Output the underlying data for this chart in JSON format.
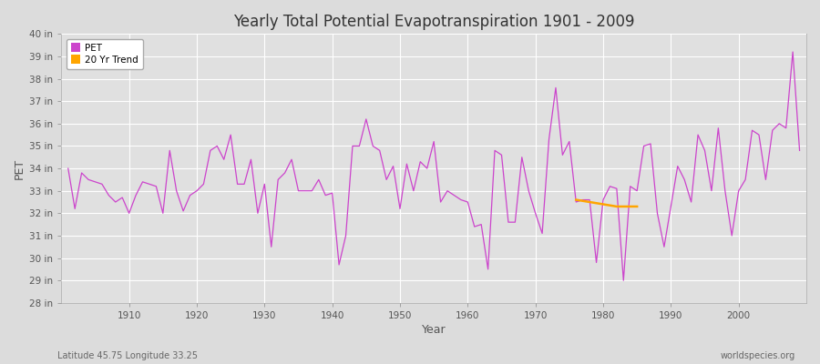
{
  "title": "Yearly Total Potential Evapotranspiration 1901 - 2009",
  "xlabel": "Year",
  "ylabel": "PET",
  "subtitle_left": "Latitude 45.75 Longitude 33.25",
  "subtitle_right": "worldspecies.org",
  "pet_color": "#CC44CC",
  "trend_color": "#FFA500",
  "fig_bg_color": "#DCDCDC",
  "plot_bg_color": "#E0E0E0",
  "ylim": [
    28,
    40
  ],
  "yticks": [
    28,
    29,
    30,
    31,
    32,
    33,
    34,
    35,
    36,
    37,
    38,
    39,
    40
  ],
  "xlim": [
    1900,
    2010
  ],
  "xtick_positions": [
    1910,
    1920,
    1930,
    1940,
    1950,
    1960,
    1970,
    1980,
    1990,
    2000
  ],
  "years": [
    1901,
    1902,
    1903,
    1904,
    1905,
    1906,
    1907,
    1908,
    1909,
    1910,
    1911,
    1912,
    1913,
    1914,
    1915,
    1916,
    1917,
    1918,
    1919,
    1920,
    1921,
    1922,
    1923,
    1924,
    1925,
    1926,
    1927,
    1928,
    1929,
    1930,
    1931,
    1932,
    1933,
    1934,
    1935,
    1936,
    1937,
    1938,
    1939,
    1940,
    1941,
    1942,
    1943,
    1944,
    1945,
    1946,
    1947,
    1948,
    1949,
    1950,
    1951,
    1952,
    1953,
    1954,
    1955,
    1956,
    1957,
    1958,
    1959,
    1960,
    1961,
    1962,
    1963,
    1964,
    1965,
    1966,
    1967,
    1968,
    1969,
    1970,
    1971,
    1972,
    1973,
    1974,
    1975,
    1976,
    1977,
    1978,
    1979,
    1980,
    1981,
    1982,
    1983,
    1984,
    1985,
    1986,
    1987,
    1988,
    1989,
    1990,
    1991,
    1992,
    1993,
    1994,
    1995,
    1996,
    1997,
    1998,
    1999,
    2000,
    2001,
    2002,
    2003,
    2004,
    2005,
    2006,
    2007,
    2008,
    2009
  ],
  "pet_values": [
    34.0,
    32.2,
    33.8,
    33.5,
    33.4,
    33.3,
    32.8,
    32.5,
    32.7,
    32.0,
    32.8,
    33.4,
    33.3,
    33.2,
    32.0,
    34.8,
    33.0,
    32.1,
    32.8,
    33.0,
    33.3,
    34.8,
    35.0,
    34.4,
    35.5,
    33.3,
    33.3,
    34.4,
    32.0,
    33.3,
    30.5,
    33.5,
    33.8,
    34.4,
    33.0,
    33.0,
    33.0,
    33.5,
    32.8,
    32.9,
    29.7,
    31.0,
    35.0,
    35.0,
    36.2,
    35.0,
    34.8,
    33.5,
    34.1,
    32.2,
    34.2,
    33.0,
    34.3,
    34.0,
    35.2,
    32.5,
    33.0,
    32.8,
    32.6,
    32.5,
    31.4,
    31.5,
    29.5,
    34.8,
    34.6,
    31.6,
    31.6,
    34.5,
    33.0,
    32.0,
    31.1,
    35.3,
    37.6,
    34.6,
    35.2,
    32.5,
    32.6,
    32.6,
    29.8,
    32.6,
    33.2,
    33.1,
    29.0,
    33.2,
    33.0,
    35.0,
    35.1,
    32.0,
    30.5,
    32.3,
    34.1,
    33.5,
    32.5,
    35.5,
    34.8,
    33.0,
    35.8,
    33.0,
    31.0,
    33.0,
    33.5,
    35.7,
    35.5,
    33.5,
    35.7,
    36.0,
    35.8,
    39.2,
    34.8
  ],
  "trend_years": [
    1976,
    1977,
    1978,
    1979,
    1980,
    1981,
    1982,
    1983,
    1984,
    1985
  ],
  "trend_values": [
    32.6,
    32.55,
    32.5,
    32.45,
    32.4,
    32.35,
    32.3,
    32.3,
    32.3,
    32.3
  ]
}
